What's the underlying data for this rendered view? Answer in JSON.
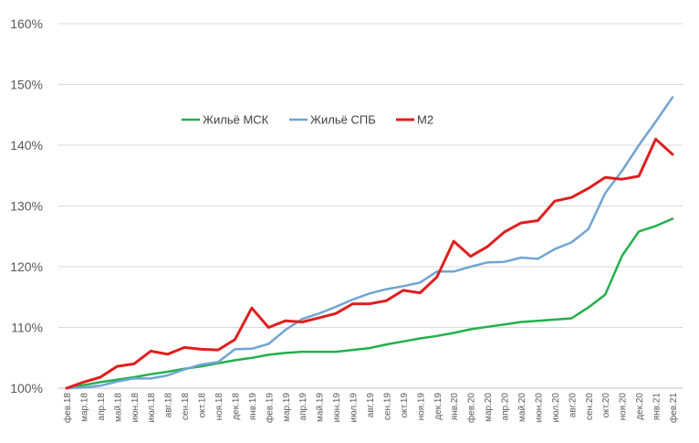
{
  "chart_data": {
    "type": "line",
    "title": "",
    "xlabel": "",
    "ylabel": "",
    "ylim": [
      100,
      160
    ],
    "yticks": [
      "100%",
      "110%",
      "120%",
      "130%",
      "140%",
      "150%",
      "160%"
    ],
    "ytick_values": [
      100,
      110,
      120,
      130,
      140,
      150,
      160
    ],
    "grid": "horizontal",
    "legend_position": "top-center",
    "categories": [
      "фев.18",
      "мар.18",
      "апр.18",
      "май.18",
      "июн.18",
      "июл.18",
      "авг.18",
      "сен.18",
      "окт.18",
      "ноя.18",
      "дек.18",
      "янв.19",
      "фев.19",
      "мар.19",
      "апр.19",
      "май.19",
      "июн.19",
      "июл.19",
      "авг.19",
      "сен.19",
      "окт.19",
      "ноя.19",
      "дек.19",
      "янв.20",
      "фев.20",
      "мар.20",
      "апр.20",
      "май.20",
      "июн.20",
      "июл.20",
      "авг.20",
      "сен.20",
      "окт.20",
      "ноя.20",
      "дек.20",
      "янв.21",
      "фев.21"
    ],
    "series": [
      {
        "name": "Жильё МСК",
        "color": "#22b04b",
        "values": [
          100,
          100.5,
          101.0,
          101.4,
          101.8,
          102.3,
          102.7,
          103.2,
          103.6,
          104.1,
          104.6,
          105.0,
          105.5,
          105.8,
          106.0,
          106.0,
          106.0,
          106.3,
          106.6,
          107.2,
          107.7,
          108.2,
          108.6,
          109.1,
          109.7,
          110.1,
          110.5,
          110.9,
          111.1,
          111.3,
          111.5,
          113.3,
          115.4,
          121.8,
          125.8,
          126.7,
          127.9
        ]
      },
      {
        "name": "Жильё СПБ",
        "color": "#70a4d4",
        "values": [
          100,
          100.1,
          100.4,
          101.1,
          101.6,
          101.6,
          102.1,
          103.1,
          103.9,
          104.3,
          106.4,
          106.5,
          107.3,
          109.6,
          111.4,
          112.3,
          113.4,
          114.6,
          115.6,
          116.3,
          116.8,
          117.4,
          119.2,
          119.2,
          120.0,
          120.7,
          120.8,
          121.5,
          121.3,
          122.9,
          124.0,
          126.2,
          132.1,
          135.8,
          140.0,
          143.9,
          147.9
        ]
      },
      {
        "name": "M2",
        "color": "#e01e1e",
        "values": [
          100,
          101.0,
          101.8,
          103.6,
          104.0,
          106.1,
          105.6,
          106.7,
          106.4,
          106.3,
          108.0,
          113.2,
          110.0,
          111.1,
          110.9,
          111.6,
          112.3,
          113.9,
          113.9,
          114.4,
          116.1,
          115.7,
          118.3,
          124.2,
          121.7,
          123.3,
          125.7,
          127.2,
          127.6,
          130.8,
          131.4,
          132.9,
          134.7,
          134.4,
          134.9,
          141.0,
          138.5
        ]
      }
    ]
  }
}
